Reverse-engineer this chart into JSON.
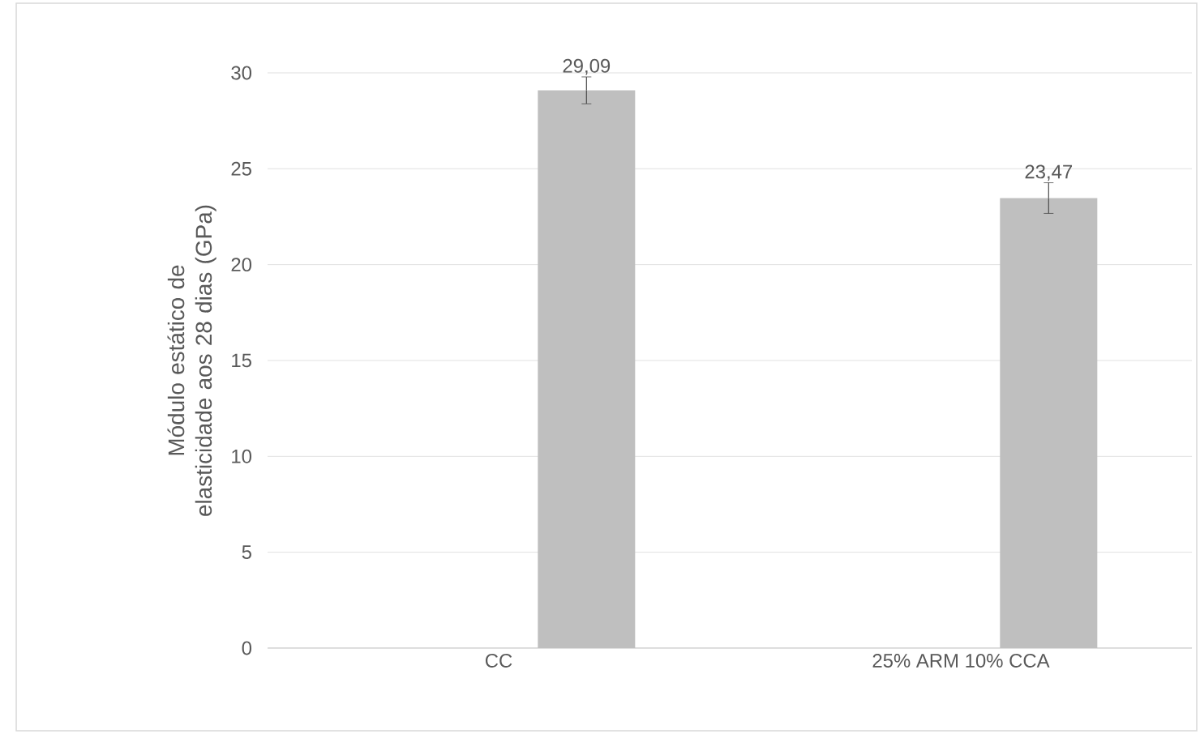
{
  "chart_data": {
    "type": "bar",
    "ylabel": "Módulo estático de elasticidade aos 28 dias (GPa)",
    "categories": [
      "CC",
      "25% ARM 10% CCA"
    ],
    "values": [
      29.09,
      23.47
    ],
    "value_labels": [
      "29,09",
      "23,47"
    ],
    "errors": [
      0.7,
      0.8
    ],
    "color": "#bfbfbf",
    "ylim": [
      0,
      30
    ],
    "yticks": [
      0,
      5,
      10,
      15,
      20,
      25,
      30
    ],
    "grid": "y"
  }
}
